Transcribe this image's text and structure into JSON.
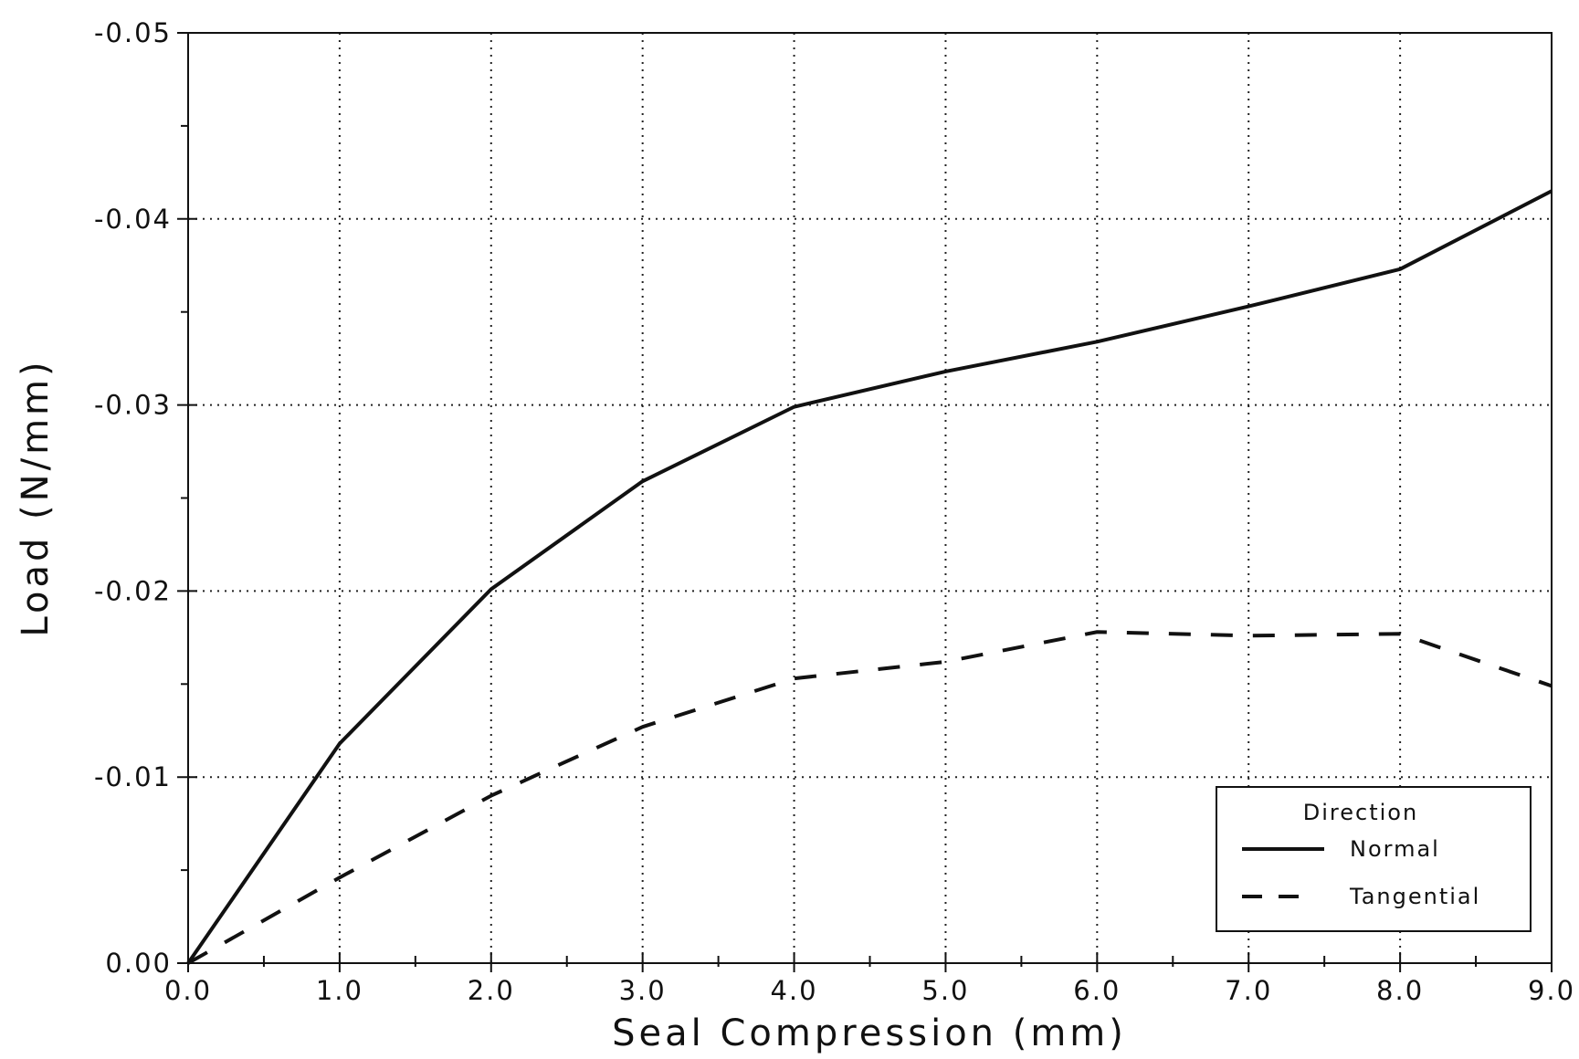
{
  "chart_data": {
    "type": "line",
    "title": "",
    "xlabel": "Seal Compression (mm)",
    "ylabel": "Load (N/mm)",
    "xlim": [
      0,
      9
    ],
    "ylim": [
      0,
      -0.05
    ],
    "x_ticks": [
      "0.0",
      "1.0",
      "2.0",
      "3.0",
      "4.0",
      "5.0",
      "6.0",
      "7.0",
      "8.0",
      "9.0"
    ],
    "y_ticks": [
      "0.00",
      "-0.01",
      "-0.02",
      "-0.03",
      "-0.04",
      "-0.05"
    ],
    "grid": true,
    "legend_position": "bottom-right",
    "legend_title": "Direction",
    "x": [
      0,
      1,
      2,
      3,
      4,
      5,
      6,
      7,
      8,
      9
    ],
    "series": [
      {
        "name": "Normal",
        "style": "solid",
        "values": [
          0,
          -0.0118,
          -0.0201,
          -0.0259,
          -0.0299,
          -0.0318,
          -0.0334,
          -0.0353,
          -0.0373,
          -0.0415
        ]
      },
      {
        "name": "Tangential",
        "style": "dashed",
        "values": [
          0,
          -0.0046,
          -0.009,
          -0.0127,
          -0.0153,
          -0.0162,
          -0.0178,
          -0.0176,
          -0.0177,
          -0.0149
        ]
      }
    ]
  }
}
